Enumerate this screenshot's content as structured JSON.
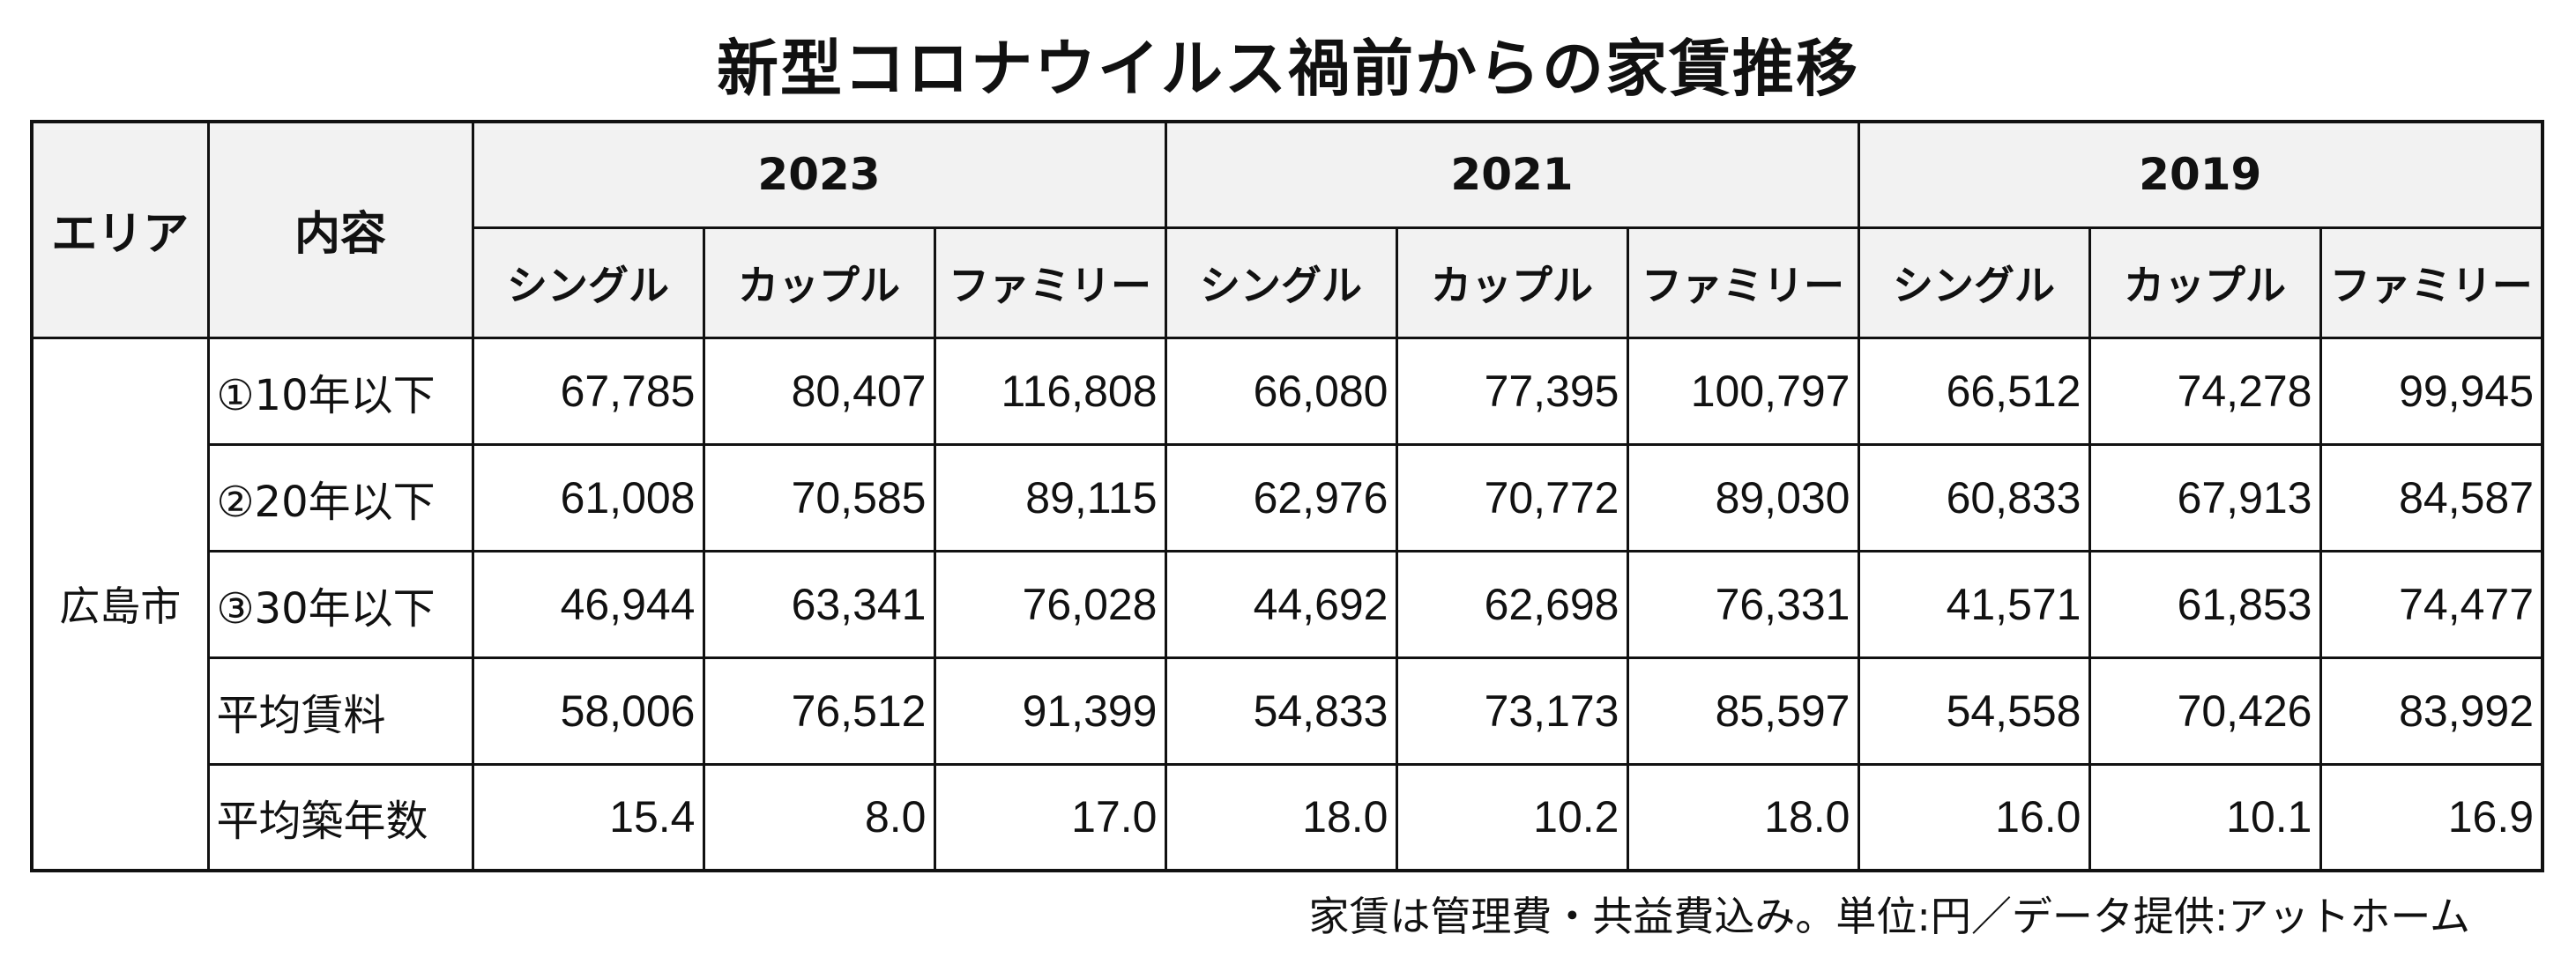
{
  "title": "新型コロナウイルス禍前からの家賃推移",
  "table": {
    "area_header": "エリア",
    "content_header": "内容",
    "years": [
      "2023",
      "2021",
      "2019"
    ],
    "types": [
      "シングル",
      "カップル",
      "ファミリー"
    ],
    "area": "広島市",
    "rows": [
      {
        "label": "①10年以下",
        "values": [
          "67,785",
          "80,407",
          "116,808",
          "66,080",
          "77,395",
          "100,797",
          "66,512",
          "74,278",
          "99,945"
        ]
      },
      {
        "label": "②20年以下",
        "values": [
          "61,008",
          "70,585",
          "89,115",
          "62,976",
          "70,772",
          "89,030",
          "60,833",
          "67,913",
          "84,587"
        ]
      },
      {
        "label": "③30年以下",
        "values": [
          "46,944",
          "63,341",
          "76,028",
          "44,692",
          "62,698",
          "76,331",
          "41,571",
          "61,853",
          "74,477"
        ]
      },
      {
        "label": "平均賃料",
        "values": [
          "58,006",
          "76,512",
          "91,399",
          "54,833",
          "73,173",
          "85,597",
          "54,558",
          "70,426",
          "83,992"
        ]
      },
      {
        "label": "平均築年数",
        "values": [
          "15.4",
          "8.0",
          "17.0",
          "18.0",
          "10.2",
          "18.0",
          "16.0",
          "10.1",
          "16.9"
        ]
      }
    ]
  },
  "note": "家賃は管理費・共益費込み。単位:円／データ提供:アットホーム"
}
